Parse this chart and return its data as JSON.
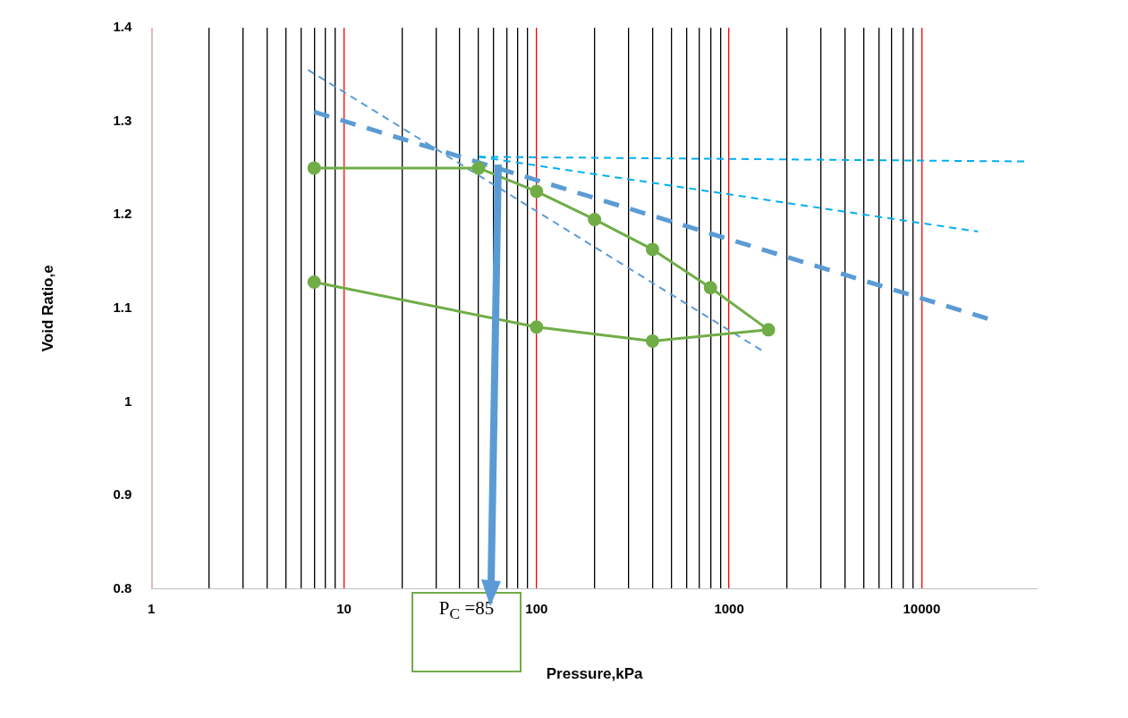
{
  "chart_data": {
    "type": "line",
    "xlabel": "Pressure,kPa",
    "ylabel": "Void Ratio,e",
    "annotations": [
      "P$_{C}$ =85"
    ],
    "log": "x",
    "grid": "x",
    "legend": false,
    "xlim": [
      1,
      40000
    ],
    "ylim": [
      0.8,
      1.4
    ],
    "xticks": [
      1,
      {
        "value": 2,
        "label": null
      },
      {
        "value": 3,
        "label": null
      },
      {
        "value": 4,
        "label": null
      },
      {
        "value": 5,
        "label": null
      },
      {
        "value": 6,
        "label": null
      },
      {
        "value": 7,
        "label": null
      },
      {
        "value": 8,
        "label": null
      },
      {
        "value": 9,
        "label": null
      },
      10,
      {
        "value": 20,
        "label": null
      },
      {
        "value": 30,
        "label": null
      },
      {
        "value": 40,
        "label": null
      },
      {
        "value": 50,
        "label": null
      },
      {
        "value": 60,
        "label": null
      },
      {
        "value": 70,
        "label": null
      },
      {
        "value": 80,
        "label": null
      },
      {
        "value": 90,
        "label": null
      },
      100,
      {
        "value": 200,
        "label": null
      },
      {
        "value": 300,
        "label": null
      },
      {
        "value": 400,
        "label": null
      },
      {
        "value": 500,
        "label": null
      },
      {
        "value": 600,
        "label": null
      },
      {
        "value": 700,
        "label": null
      },
      {
        "value": 800,
        "label": null
      },
      {
        "value": 900,
        "label": null
      },
      1000,
      {
        "value": 2000,
        "label": null
      },
      {
        "value": 3000,
        "label": null
      },
      {
        "value": 4000,
        "label": null
      },
      {
        "value": 5000,
        "label": null
      },
      {
        "value": 6000,
        "label": null
      },
      {
        "value": 7000,
        "label": null
      },
      {
        "value": 8000,
        "label": null
      },
      {
        "value": 9000,
        "label": null
      },
      10000
    ],
    "yticks": [
      0.8,
      0.9,
      1,
      1.1,
      1.2,
      1.3,
      1.4
    ],
    "series": [
      {
        "color": "#70ad47",
        "marker": "circle",
        "line_style": "solid",
        "x": [
          7,
          50,
          100,
          200,
          400,
          800,
          1600,
          400,
          100,
          7
        ],
        "values": [
          1.25,
          1.25,
          1.225,
          1.195,
          1.163,
          1.122,
          1.077,
          1.065,
          1.08,
          1.128
        ]
      },
      {
        "color": "#5b9bd5",
        "marker": "none",
        "line_style": "dashed",
        "x": [
          7,
          22800
        ],
        "values": [
          1.31,
          1.088
        ]
      },
      {
        "color": "#5b9bd5",
        "marker": "none",
        "line_style": "dashed",
        "x": [
          6.5,
          1530
        ],
        "values": [
          1.355,
          1.053
        ]
      },
      {
        "color": "#00b0f0",
        "marker": "none",
        "line_style": "dashed",
        "x": [
          50,
          35000
        ],
        "values": [
          1.262,
          1.257
        ]
      },
      {
        "color": "#00b0f0",
        "marker": "none",
        "line_style": "dashed",
        "x": [
          50,
          19600
        ],
        "values": [
          1.262,
          1.182
        ]
      }
    ]
  }
}
